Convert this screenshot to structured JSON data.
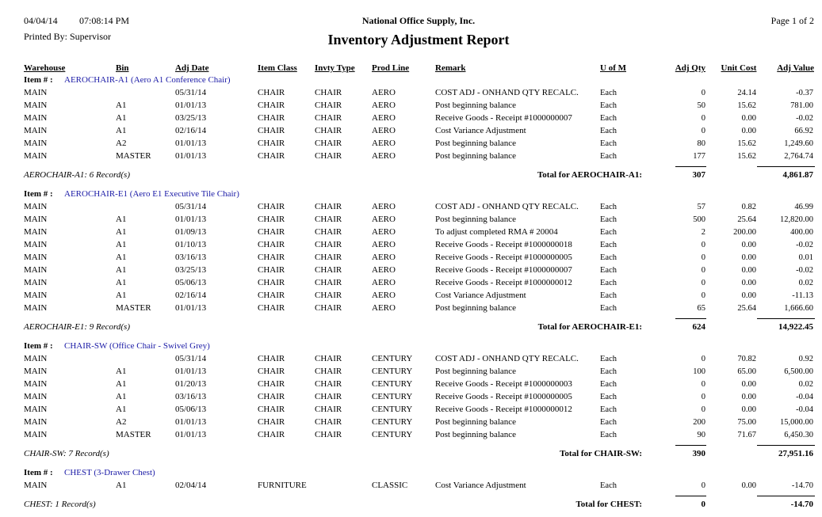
{
  "header": {
    "date": "04/04/14",
    "time": "07:08:14 PM",
    "company": "National Office Supply, Inc.",
    "title": "Inventory Adjustment Report",
    "printed_by": "Printed By: Supervisor",
    "page": "Page 1 of 2"
  },
  "columns": [
    "Warehouse",
    "Bin",
    "Adj Date",
    "Item Class",
    "Invty Type",
    "Prod Line",
    "Remark",
    "U of M",
    "Adj Qty",
    "Unit Cost",
    "Adj Value"
  ],
  "item_label": "Item # :",
  "groups": [
    {
      "item": "AEROCHAIR-A1 (Aero A1 Conference Chair)",
      "rows": [
        [
          "MAIN",
          null,
          "05/31/14",
          "CHAIR",
          "CHAIR",
          "AERO",
          "COST ADJ - ONHAND QTY RECALC.",
          "Each",
          "0",
          "24.14",
          "-0.37"
        ],
        [
          "MAIN",
          "A1",
          "01/01/13",
          "CHAIR",
          "CHAIR",
          "AERO",
          "Post beginning balance",
          "Each",
          "50",
          "15.62",
          "781.00"
        ],
        [
          "MAIN",
          "A1",
          "03/25/13",
          "CHAIR",
          "CHAIR",
          "AERO",
          "Receive Goods - Receipt #1000000007",
          "Each",
          "0",
          "0.00",
          "-0.02"
        ],
        [
          "MAIN",
          "A1",
          "02/16/14",
          "CHAIR",
          "CHAIR",
          "AERO",
          "Cost Variance Adjustment",
          "Each",
          "0",
          "0.00",
          "66.92"
        ],
        [
          "MAIN",
          "A2",
          "01/01/13",
          "CHAIR",
          "CHAIR",
          "AERO",
          "Post beginning balance",
          "Each",
          "80",
          "15.62",
          "1,249.60"
        ],
        [
          "MAIN",
          "MASTER",
          "01/01/13",
          "CHAIR",
          "CHAIR",
          "AERO",
          "Post beginning balance",
          "Each",
          "177",
          "15.62",
          "2,764.74"
        ]
      ],
      "records": "AEROCHAIR-A1: 6 Record(s)",
      "total_label": "Total for AEROCHAIR-A1:",
      "total_qty": "307",
      "total_value": "4,861.87"
    },
    {
      "item": "AEROCHAIR-E1 (Aero E1 Executive Tile Chair)",
      "rows": [
        [
          "MAIN",
          null,
          "05/31/14",
          "CHAIR",
          "CHAIR",
          "AERO",
          "COST ADJ - ONHAND QTY RECALC.",
          "Each",
          "57",
          "0.82",
          "46.99"
        ],
        [
          "MAIN",
          "A1",
          "01/01/13",
          "CHAIR",
          "CHAIR",
          "AERO",
          "Post beginning balance",
          "Each",
          "500",
          "25.64",
          "12,820.00"
        ],
        [
          "MAIN",
          "A1",
          "01/09/13",
          "CHAIR",
          "CHAIR",
          "AERO",
          "To adjust completed RMA # 20004",
          "Each",
          "2",
          "200.00",
          "400.00"
        ],
        [
          "MAIN",
          "A1",
          "01/10/13",
          "CHAIR",
          "CHAIR",
          "AERO",
          "Receive Goods - Receipt #1000000018",
          "Each",
          "0",
          "0.00",
          "-0.02"
        ],
        [
          "MAIN",
          "A1",
          "03/16/13",
          "CHAIR",
          "CHAIR",
          "AERO",
          "Receive Goods - Receipt #1000000005",
          "Each",
          "0",
          "0.00",
          "0.01"
        ],
        [
          "MAIN",
          "A1",
          "03/25/13",
          "CHAIR",
          "CHAIR",
          "AERO",
          "Receive Goods - Receipt #1000000007",
          "Each",
          "0",
          "0.00",
          "-0.02"
        ],
        [
          "MAIN",
          "A1",
          "05/06/13",
          "CHAIR",
          "CHAIR",
          "AERO",
          "Receive Goods - Receipt #1000000012",
          "Each",
          "0",
          "0.00",
          "0.02"
        ],
        [
          "MAIN",
          "A1",
          "02/16/14",
          "CHAIR",
          "CHAIR",
          "AERO",
          "Cost Variance Adjustment",
          "Each",
          "0",
          "0.00",
          "-11.13"
        ],
        [
          "MAIN",
          "MASTER",
          "01/01/13",
          "CHAIR",
          "CHAIR",
          "AERO",
          "Post beginning balance",
          "Each",
          "65",
          "25.64",
          "1,666.60"
        ]
      ],
      "records": "AEROCHAIR-E1: 9 Record(s)",
      "total_label": "Total for AEROCHAIR-E1:",
      "total_qty": "624",
      "total_value": "14,922.45"
    },
    {
      "item": "CHAIR-SW (Office Chair - Swivel Grey)",
      "rows": [
        [
          "MAIN",
          null,
          "05/31/14",
          "CHAIR",
          "CHAIR",
          "CENTURY",
          "COST ADJ - ONHAND QTY RECALC.",
          "Each",
          "0",
          "70.82",
          "0.92"
        ],
        [
          "MAIN",
          "A1",
          "01/01/13",
          "CHAIR",
          "CHAIR",
          "CENTURY",
          "Post beginning balance",
          "Each",
          "100",
          "65.00",
          "6,500.00"
        ],
        [
          "MAIN",
          "A1",
          "01/20/13",
          "CHAIR",
          "CHAIR",
          "CENTURY",
          "Receive Goods - Receipt #1000000003",
          "Each",
          "0",
          "0.00",
          "0.02"
        ],
        [
          "MAIN",
          "A1",
          "03/16/13",
          "CHAIR",
          "CHAIR",
          "CENTURY",
          "Receive Goods - Receipt #1000000005",
          "Each",
          "0",
          "0.00",
          "-0.04"
        ],
        [
          "MAIN",
          "A1",
          "05/06/13",
          "CHAIR",
          "CHAIR",
          "CENTURY",
          "Receive Goods - Receipt #1000000012",
          "Each",
          "0",
          "0.00",
          "-0.04"
        ],
        [
          "MAIN",
          "A2",
          "01/01/13",
          "CHAIR",
          "CHAIR",
          "CENTURY",
          "Post beginning balance",
          "Each",
          "200",
          "75.00",
          "15,000.00"
        ],
        [
          "MAIN",
          "MASTER",
          "01/01/13",
          "CHAIR",
          "CHAIR",
          "CENTURY",
          "Post beginning balance",
          "Each",
          "90",
          "71.67",
          "6,450.30"
        ]
      ],
      "records": "CHAIR-SW: 7 Record(s)",
      "total_label": "Total for CHAIR-SW:",
      "total_qty": "390",
      "total_value": "27,951.16"
    },
    {
      "item": "CHEST (3-Drawer Chest)",
      "rows": [
        [
          "MAIN",
          "A1",
          "02/04/14",
          "FURNITURE",
          null,
          "CLASSIC",
          "Cost Variance Adjustment",
          "Each",
          "0",
          "0.00",
          "-14.70"
        ]
      ],
      "records": "CHEST: 1 Record(s)",
      "total_label": "Total for CHEST:",
      "total_qty": "0",
      "total_value": "-14.70"
    }
  ]
}
